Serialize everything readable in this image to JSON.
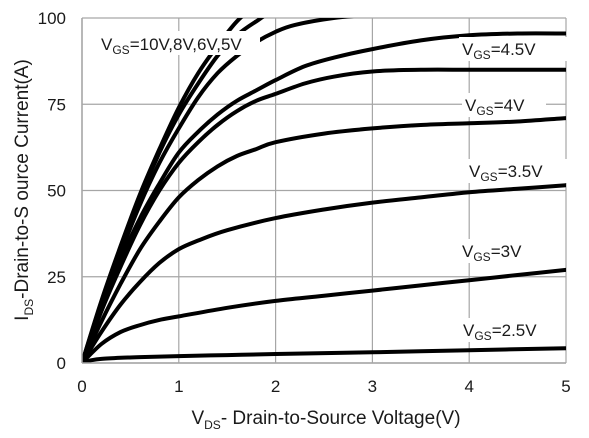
{
  "chart_data": {
    "type": "line",
    "title": "",
    "xlabel": {
      "main": "V",
      "sub": "DS",
      "rest": "- Drain-to-Source Voltage(V)"
    },
    "ylabel": {
      "main": "I",
      "sub": "DS",
      "rest": "-Drain-to-S ource Current(A)"
    },
    "xlim": [
      0,
      5
    ],
    "ylim": [
      0,
      100
    ],
    "xticks": [
      0,
      1,
      2,
      3,
      4,
      5
    ],
    "yticks": [
      0,
      25,
      50,
      75,
      100
    ],
    "grid": true,
    "line_color": "#000000",
    "grid_color": "#a6a6a6",
    "series": [
      {
        "label": {
          "main": "V",
          "sub": "GS",
          "rest": "=10V,8V,6V,5V"
        },
        "x": [
          0,
          0.2,
          0.4,
          0.6,
          0.8,
          1.0,
          1.2,
          1.4,
          1.6,
          1.8,
          2.0,
          2.5
        ],
        "y": [
          0,
          18,
          34,
          49,
          62,
          74,
          84,
          92,
          99,
          104,
          108,
          112
        ]
      },
      {
        "label": null,
        "x": [
          0,
          0.2,
          0.4,
          0.6,
          0.8,
          1.0,
          1.2,
          1.4,
          1.6,
          1.8,
          2.0,
          2.5
        ],
        "y": [
          0,
          17.5,
          33,
          48,
          61,
          72,
          81,
          89,
          95,
          99,
          102,
          104
        ]
      },
      {
        "label": null,
        "x": [
          0,
          0.2,
          0.4,
          0.6,
          0.8,
          1.0,
          1.2,
          1.4,
          1.6,
          1.8,
          2.0,
          2.2,
          2.6,
          3.0
        ],
        "y": [
          0,
          17,
          32,
          46,
          58,
          68,
          77,
          84,
          89,
          93,
          96,
          98,
          100,
          101
        ]
      },
      {
        "label": null,
        "x": [
          0,
          0.2,
          0.4,
          0.6,
          0.8,
          1.0,
          1.2,
          1.4,
          1.6,
          1.8,
          2.0,
          2.3,
          2.6,
          3.0,
          3.5,
          4.0,
          4.5,
          5.0
        ],
        "y": [
          0,
          16,
          30,
          42,
          52,
          61,
          67,
          72,
          76,
          79,
          82,
          86,
          88.5,
          91,
          93.5,
          95,
          95.5,
          95.5
        ]
      },
      {
        "label": {
          "main": "V",
          "sub": "GS",
          "rest": "=4.5V"
        },
        "x": [
          0,
          0.2,
          0.4,
          0.6,
          0.8,
          1.0,
          1.2,
          1.4,
          1.6,
          1.8,
          2.0,
          2.3,
          2.6,
          3.0,
          3.5,
          4.0,
          4.5,
          5.0
        ],
        "y": [
          0,
          15,
          28,
          40,
          50,
          58,
          64,
          69,
          73,
          76,
          78,
          81,
          83,
          84.5,
          85,
          85,
          85,
          85
        ]
      },
      {
        "label": {
          "main": "V",
          "sub": "GS",
          "rest": "=4V"
        },
        "x": [
          0,
          0.2,
          0.4,
          0.6,
          0.8,
          1.0,
          1.2,
          1.4,
          1.6,
          1.8,
          2.0,
          2.5,
          3.0,
          3.5,
          4.0,
          4.5,
          5.0
        ],
        "y": [
          0,
          12,
          23,
          33,
          41,
          48,
          53,
          57,
          60,
          62,
          64,
          66.5,
          68,
          69,
          69.5,
          70,
          71
        ]
      },
      {
        "label": {
          "main": "V",
          "sub": "GS",
          "rest": "=3.5V"
        },
        "x": [
          0,
          0.2,
          0.4,
          0.6,
          0.8,
          1.0,
          1.2,
          1.5,
          2.0,
          2.5,
          3.0,
          3.5,
          4.0,
          4.5,
          5.0
        ],
        "y": [
          0,
          9,
          17,
          23.5,
          29,
          33,
          35.5,
          38.5,
          42,
          44.5,
          46.5,
          48,
          49.5,
          50.5,
          51.5
        ]
      },
      {
        "label": {
          "main": "V",
          "sub": "GS",
          "rest": "=3V"
        },
        "x": [
          0,
          0.2,
          0.4,
          0.6,
          0.8,
          1.0,
          1.5,
          2.0,
          2.5,
          3.0,
          3.5,
          4.0,
          4.5,
          5.0
        ],
        "y": [
          0,
          5.5,
          9,
          11,
          12.5,
          13.5,
          16,
          18,
          19.5,
          21,
          22.5,
          24,
          25.5,
          27
        ]
      },
      {
        "label": {
          "main": "V",
          "sub": "GS",
          "rest": "=2.5V"
        },
        "x": [
          0,
          0.1,
          0.2,
          0.4,
          0.6,
          1.0,
          1.5,
          2.0,
          3.0,
          4.0,
          5.0
        ],
        "y": [
          0,
          0.8,
          1.2,
          1.5,
          1.7,
          2.0,
          2.3,
          2.6,
          3.1,
          3.7,
          4.3
        ]
      }
    ]
  }
}
